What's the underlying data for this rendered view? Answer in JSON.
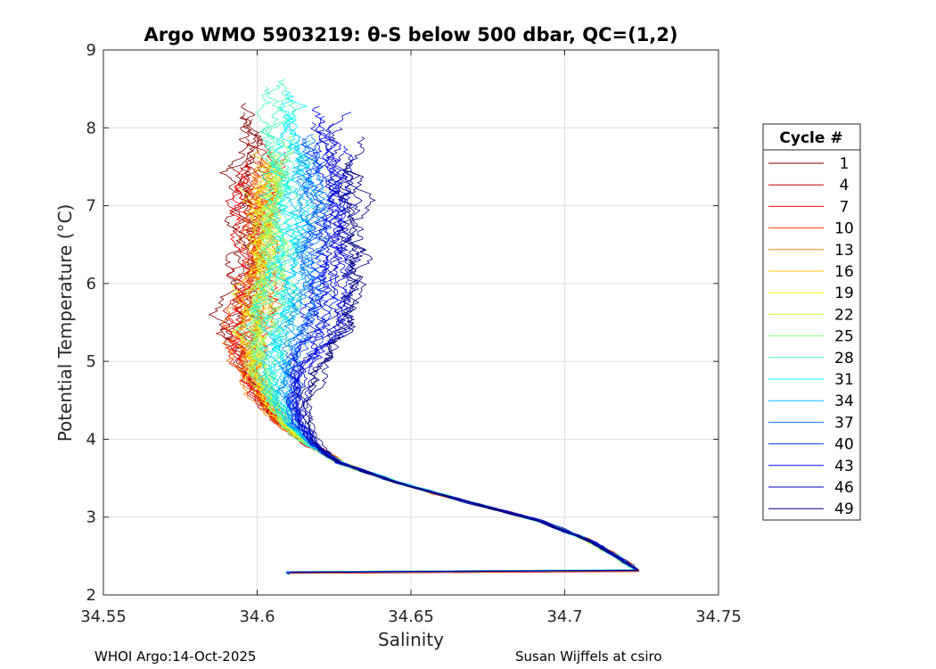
{
  "chart_data": {
    "type": "line",
    "title": "Argo WMO 5903219: θ-S below 500 dbar,  QC=(1,2)",
    "xlabel": "Salinity",
    "ylabel": "Potential Temperature (°C)",
    "xlim": [
      34.55,
      34.75
    ],
    "ylim": [
      2,
      9
    ],
    "xticks": [
      34.55,
      34.6,
      34.65,
      34.7,
      34.75
    ],
    "xtick_labels": [
      "34.55",
      "34.6",
      "34.65",
      "34.7",
      "34.75"
    ],
    "yticks": [
      2,
      3,
      4,
      5,
      6,
      7,
      8,
      9
    ],
    "ytick_labels": [
      "2",
      "3",
      "4",
      "5",
      "6",
      "7",
      "8",
      "9"
    ],
    "grid": true,
    "legend": {
      "title": "Cycle #",
      "placement": "right",
      "entries": [
        {
          "label": "1",
          "color": "#800000"
        },
        {
          "label": "4",
          "color": "#bf0000"
        },
        {
          "label": "7",
          "color": "#ff0000"
        },
        {
          "label": "10",
          "color": "#ff4000"
        },
        {
          "label": "13",
          "color": "#ff8000"
        },
        {
          "label": "16",
          "color": "#ffbf00"
        },
        {
          "label": "19",
          "color": "#ffff00"
        },
        {
          "label": "22",
          "color": "#bfff40"
        },
        {
          "label": "25",
          "color": "#80ff80"
        },
        {
          "label": "28",
          "color": "#40ffbf"
        },
        {
          "label": "31",
          "color": "#00ffff"
        },
        {
          "label": "34",
          "color": "#00bfff"
        },
        {
          "label": "37",
          "color": "#0080ff"
        },
        {
          "label": "40",
          "color": "#0040ff"
        },
        {
          "label": "43",
          "color": "#0000ff"
        },
        {
          "label": "46",
          "color": "#0000bf"
        },
        {
          "label": "49",
          "color": "#000080"
        }
      ]
    },
    "curve": {
      "description_points": [
        {
          "s": 34.724,
          "t": 2.3
        },
        {
          "s": 34.717,
          "t": 2.5
        },
        {
          "s": 34.708,
          "t": 2.7
        },
        {
          "s": 34.692,
          "t": 2.95
        },
        {
          "s": 34.668,
          "t": 3.2
        },
        {
          "s": 34.645,
          "t": 3.45
        },
        {
          "s": 34.627,
          "t": 3.7
        },
        {
          "s": 34.617,
          "t": 3.95
        },
        {
          "s": 34.61,
          "t": 4.2
        },
        {
          "s": 34.606,
          "t": 4.5
        },
        {
          "s": 34.604,
          "t": 4.85
        },
        {
          "s": 34.605,
          "t": 5.2
        },
        {
          "s": 34.607,
          "t": 5.6
        },
        {
          "s": 34.609,
          "t": 6.0
        },
        {
          "s": 34.61,
          "t": 6.5
        },
        {
          "s": 34.61,
          "t": 7.0
        },
        {
          "s": 34.61,
          "t": 7.5
        },
        {
          "s": 34.61,
          "t": 8.0
        }
      ],
      "upper_offsets_by_cycle": [
        -0.012,
        -0.011,
        -0.01,
        -0.009,
        -0.008,
        -0.008,
        -0.007,
        -0.006,
        -0.004,
        -0.002,
        0.0,
        0.004,
        0.008,
        0.012,
        0.016,
        0.018,
        0.02
      ],
      "top_temperatures_by_cycle": [
        8.5,
        8.1,
        7.9,
        7.85,
        7.8,
        7.8,
        7.7,
        7.9,
        8.0,
        8.7,
        8.5,
        8.2,
        8.0,
        7.9,
        8.35,
        8.1,
        8.0
      ]
    }
  },
  "footer": {
    "left": "WHOI Argo:14-Oct-2025",
    "right": "Susan Wijffels at csiro"
  }
}
